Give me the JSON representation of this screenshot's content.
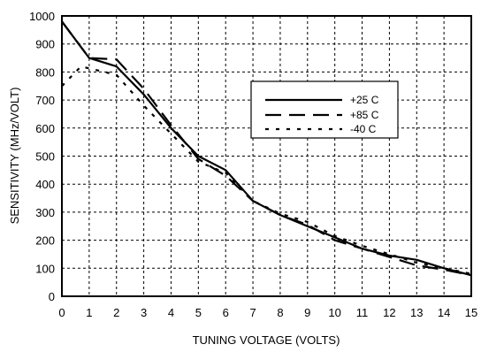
{
  "chart_data": {
    "type": "line",
    "xlabel": "TUNING VOLTAGE (VOLTS)",
    "ylabel": "SENSITIVITY (MHz/VOLT)",
    "xlim": [
      0,
      15
    ],
    "ylim": [
      0,
      1000
    ],
    "x_ticks": [
      "0",
      "1",
      "2",
      "3",
      "4",
      "5",
      "6",
      "7",
      "8",
      "9",
      "10",
      "11",
      "12",
      "13",
      "14",
      "15"
    ],
    "y_ticks": [
      "0",
      "100",
      "200",
      "300",
      "400",
      "500",
      "600",
      "700",
      "800",
      "900",
      "1000"
    ],
    "grid": true,
    "legend_position": "upper-right",
    "series": [
      {
        "name": "+25 C",
        "style": "solid",
        "points": [
          [
            0,
            980
          ],
          [
            1,
            850
          ],
          [
            2,
            820
          ],
          [
            3,
            720
          ],
          [
            4,
            600
          ],
          [
            5,
            500
          ],
          [
            6,
            450
          ],
          [
            7,
            340
          ],
          [
            8,
            290
          ],
          [
            9,
            250
          ],
          [
            10,
            210
          ],
          [
            11,
            170
          ],
          [
            12,
            145
          ],
          [
            13,
            130
          ],
          [
            14,
            100
          ],
          [
            15,
            75
          ]
        ]
      },
      {
        "name": "+85 C",
        "style": "dashed",
        "points": [
          [
            0,
            980
          ],
          [
            1,
            850
          ],
          [
            2,
            845
          ],
          [
            3,
            740
          ],
          [
            4,
            610
          ],
          [
            5,
            490
          ],
          [
            6,
            430
          ],
          [
            7,
            340
          ],
          [
            8,
            290
          ],
          [
            9,
            255
          ],
          [
            10,
            200
          ],
          [
            11,
            170
          ],
          [
            12,
            140
          ],
          [
            13,
            110
          ],
          [
            14,
            95
          ],
          [
            15,
            75
          ]
        ]
      },
      {
        "name": "-40 C",
        "style": "dotted",
        "points": [
          [
            0,
            750
          ],
          [
            0.7,
            820
          ],
          [
            2,
            790
          ],
          [
            3,
            680
          ],
          [
            4,
            580
          ],
          [
            5,
            480
          ],
          [
            6,
            440
          ],
          [
            7,
            340
          ],
          [
            8,
            295
          ],
          [
            9,
            265
          ],
          [
            10,
            215
          ],
          [
            11,
            180
          ],
          [
            12,
            150
          ],
          [
            13,
            120
          ],
          [
            14,
            100
          ],
          [
            15,
            80
          ]
        ]
      }
    ]
  }
}
